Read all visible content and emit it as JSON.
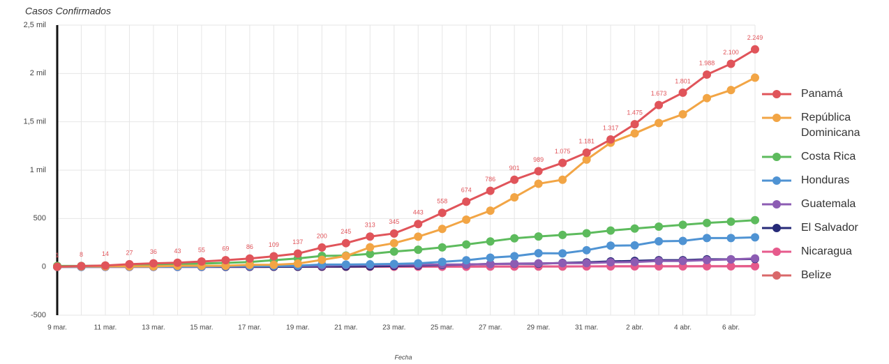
{
  "chart_data": {
    "type": "line",
    "title": "Casos Confirmados",
    "x_label": "Fecha",
    "categories": [
      "9 mar.",
      null,
      "11 mar.",
      null,
      "13 mar.",
      null,
      "15 mar.",
      null,
      "17 mar.",
      null,
      "19 mar.",
      null,
      "21 mar.",
      null,
      "23 mar.",
      null,
      "25 mar.",
      null,
      "27 mar.",
      null,
      "29 mar.",
      null,
      "31 mar.",
      null,
      "2 abr.",
      null,
      "4 abr.",
      null,
      "6 abr.",
      null
    ],
    "ylim": [
      -500,
      2500
    ],
    "yticks": [
      -500,
      0,
      500,
      {
        "value": 1000,
        "label": "1 mil"
      },
      {
        "value": 1500,
        "label": "1,5 mil"
      },
      {
        "value": 2000,
        "label": "2 mil"
      },
      {
        "value": 2500,
        "label": "2,5 mil"
      }
    ],
    "grid": true,
    "legend": "right",
    "series": [
      {
        "name": "Panamá",
        "color": "#e0545a",
        "values": [
          1,
          8,
          14,
          27,
          36,
          43,
          55,
          69,
          86,
          109,
          137,
          200,
          245,
          313,
          345,
          443,
          558,
          674,
          786,
          901,
          989,
          1075,
          1181,
          1317,
          1475,
          1673,
          1801,
          1988,
          2100,
          2249
        ],
        "value_labels": [
          "1",
          "8",
          "14",
          "27",
          "36",
          "43",
          "55",
          "69",
          "86",
          "109",
          "137",
          "200",
          "245",
          "313",
          "345",
          "443",
          "558",
          "674",
          "786",
          "901",
          "989",
          "1.075",
          "1.181",
          "1.317",
          "1.475",
          "1.673",
          "1.801",
          "1.988",
          "2.100",
          "2.249"
        ]
      },
      {
        "name": "República Dominicana",
        "color": "#f2a545",
        "values": [
          1,
          5,
          5,
          5,
          5,
          11,
          11,
          11,
          21,
          21,
          34,
          72,
          112,
          202,
          245,
          312,
          392,
          488,
          581,
          719,
          859,
          901,
          1109,
          1284,
          1380,
          1488,
          1578,
          1745,
          1828,
          1956
        ]
      },
      {
        "name": "Costa Rica",
        "color": "#5dbb5d",
        "values": [
          9,
          9,
          13,
          22,
          23,
          27,
          35,
          41,
          50,
          69,
          87,
          113,
          117,
          134,
          158,
          177,
          201,
          231,
          263,
          295,
          314,
          330,
          347,
          375,
          396,
          416,
          435,
          454,
          467,
          483
        ]
      },
      {
        "name": "Honduras",
        "color": "#4f93d3",
        "values": [
          0,
          0,
          2,
          2,
          2,
          2,
          3,
          6,
          8,
          9,
          12,
          24,
          24,
          26,
          30,
          36,
          52,
          68,
          95,
          110,
          141,
          139,
          172,
          219,
          222,
          264,
          268,
          298,
          298,
          305
        ]
      },
      {
        "name": "Guatemala",
        "color": "#8c5cb3",
        "values": [
          0,
          0,
          0,
          1,
          1,
          2,
          2,
          6,
          6,
          8,
          9,
          12,
          17,
          19,
          20,
          21,
          24,
          25,
          28,
          34,
          36,
          38,
          39,
          47,
          50,
          61,
          61,
          70,
          77,
          87
        ]
      },
      {
        "name": "El Salvador",
        "color": "#262a78",
        "values": [
          0,
          0,
          0,
          0,
          0,
          0,
          0,
          0,
          0,
          1,
          1,
          3,
          3,
          5,
          9,
          13,
          19,
          24,
          30,
          32,
          32,
          41,
          46,
          56,
          62,
          69,
          69,
          78,
          78,
          81
        ]
      },
      {
        "name": "Nicaragua",
        "color": "#e65a8c",
        "values": [
          0,
          0,
          0,
          0,
          0,
          0,
          0,
          0,
          0,
          1,
          1,
          1,
          2,
          2,
          2,
          2,
          2,
          2,
          4,
          4,
          5,
          5,
          5,
          5,
          5,
          5,
          5,
          6,
          6,
          6
        ]
      },
      {
        "name": "Belize",
        "color": "#d9686a",
        "values": [
          0,
          0,
          0,
          0,
          0,
          0,
          0,
          0,
          0,
          0,
          0,
          0,
          0,
          1,
          1,
          2,
          2,
          2,
          3,
          3,
          3,
          3,
          5,
          7,
          7,
          7,
          7,
          7,
          7,
          8
        ]
      }
    ]
  }
}
